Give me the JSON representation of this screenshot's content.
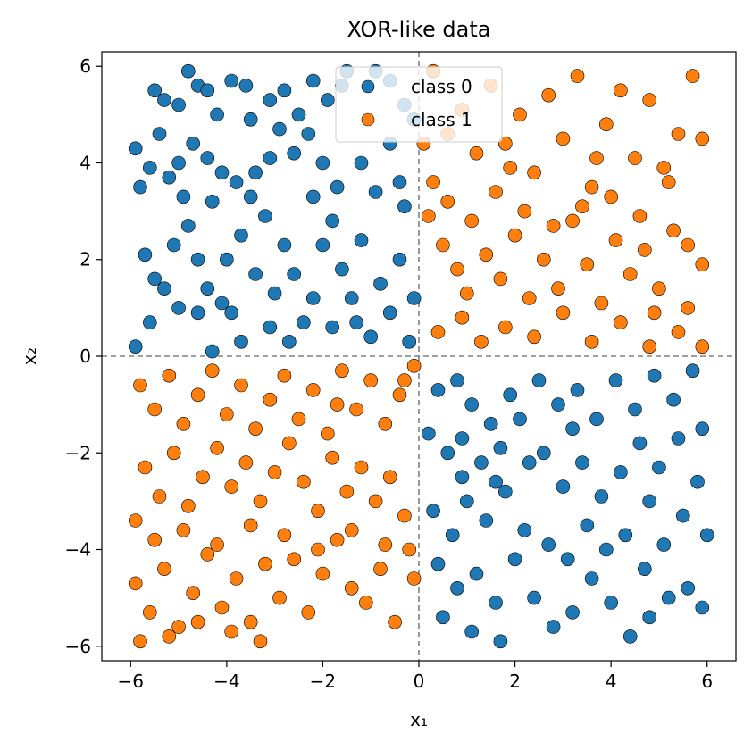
{
  "chart_data": {
    "type": "scatter",
    "title": "XOR-like data",
    "xlabel": "x₁",
    "ylabel": "x₂",
    "xlim": [
      -6.6,
      6.6
    ],
    "ylim": [
      -6.3,
      6.3
    ],
    "xticks": [
      -6,
      -4,
      -2,
      0,
      2,
      4,
      6
    ],
    "yticks": [
      -6,
      -4,
      -2,
      0,
      2,
      4,
      6
    ],
    "xtick_labels": [
      "−6",
      "−4",
      "−2",
      "0",
      "2",
      "4",
      "6"
    ],
    "ytick_labels": [
      "−6",
      "−4",
      "−2",
      "0",
      "2",
      "4",
      "6"
    ],
    "reference_lines": [
      {
        "axis": "x",
        "value": 0,
        "style": "dashed",
        "color": "#808080"
      },
      {
        "axis": "y",
        "value": 0,
        "style": "dashed",
        "color": "#808080"
      }
    ],
    "grid": false,
    "legend_position": "top-center",
    "series": [
      {
        "name": "class 0",
        "color": "#1f77b4",
        "points": [
          [
            -5.9,
            4.3
          ],
          [
            -5.8,
            3.5
          ],
          [
            -5.5,
            5.5
          ],
          [
            -5.3,
            5.3
          ],
          [
            -5.0,
            5.2
          ],
          [
            -4.8,
            5.9
          ],
          [
            -4.6,
            5.6
          ],
          [
            -4.4,
            5.5
          ],
          [
            -4.2,
            5.0
          ],
          [
            -3.9,
            5.7
          ],
          [
            -3.6,
            5.6
          ],
          [
            -3.5,
            4.9
          ],
          [
            -5.4,
            4.6
          ],
          [
            -5.0,
            4.0
          ],
          [
            -4.7,
            4.4
          ],
          [
            -4.4,
            4.1
          ],
          [
            -4.1,
            3.8
          ],
          [
            -3.8,
            3.6
          ],
          [
            -3.5,
            3.3
          ],
          [
            -5.6,
            3.9
          ],
          [
            -5.2,
            3.7
          ],
          [
            -4.9,
            3.3
          ],
          [
            -4.3,
            3.2
          ],
          [
            -3.1,
            5.3
          ],
          [
            -2.8,
            5.5
          ],
          [
            -2.5,
            5.0
          ],
          [
            -2.2,
            5.7
          ],
          [
            -1.9,
            5.3
          ],
          [
            -1.6,
            5.6
          ],
          [
            -2.9,
            4.7
          ],
          [
            -2.6,
            4.2
          ],
          [
            -2.3,
            4.6
          ],
          [
            -2.0,
            4.0
          ],
          [
            -1.7,
            3.5
          ],
          [
            -3.1,
            4.1
          ],
          [
            -3.4,
            3.8
          ],
          [
            -2.2,
            3.3
          ],
          [
            -1.5,
            5.9
          ],
          [
            -0.9,
            5.9
          ],
          [
            -0.6,
            5.7
          ],
          [
            -0.3,
            5.2
          ],
          [
            -0.1,
            4.9
          ],
          [
            -1.2,
            4.0
          ],
          [
            -0.6,
            4.4
          ],
          [
            -0.4,
            3.6
          ],
          [
            -0.9,
            3.4
          ],
          [
            -5.9,
            0.2
          ],
          [
            -5.6,
            0.7
          ],
          [
            -5.5,
            1.6
          ],
          [
            -5.3,
            1.4
          ],
          [
            -5.1,
            2.3
          ],
          [
            -4.8,
            2.7
          ],
          [
            -4.6,
            2.0
          ],
          [
            -4.4,
            1.4
          ],
          [
            -4.1,
            1.1
          ],
          [
            -3.9,
            0.9
          ],
          [
            -3.7,
            0.3
          ],
          [
            -4.3,
            0.1
          ],
          [
            -4.0,
            2.0
          ],
          [
            -3.7,
            2.5
          ],
          [
            -3.4,
            1.7
          ],
          [
            -3.2,
            2.9
          ],
          [
            -3.0,
            1.3
          ],
          [
            -2.8,
            2.3
          ],
          [
            -2.6,
            1.7
          ],
          [
            -2.4,
            0.7
          ],
          [
            -2.2,
            1.2
          ],
          [
            -2.0,
            2.3
          ],
          [
            -1.8,
            0.6
          ],
          [
            -1.6,
            1.8
          ],
          [
            -1.4,
            1.2
          ],
          [
            -1.2,
            2.4
          ],
          [
            -1.0,
            0.4
          ],
          [
            -0.8,
            1.5
          ],
          [
            -0.6,
            0.9
          ],
          [
            -0.4,
            2.0
          ],
          [
            -0.2,
            0.3
          ],
          [
            -0.1,
            1.2
          ],
          [
            -2.7,
            0.3
          ],
          [
            -3.1,
            0.6
          ],
          [
            -5.7,
            2.1
          ],
          [
            -5.0,
            1.0
          ],
          [
            -1.8,
            2.8
          ],
          [
            -0.3,
            3.1
          ],
          [
            -1.3,
            0.7
          ],
          [
            -4.6,
            0.9
          ],
          [
            0.4,
            -0.7
          ],
          [
            0.8,
            -0.5
          ],
          [
            1.1,
            -1.0
          ],
          [
            1.5,
            -1.4
          ],
          [
            1.9,
            -0.8
          ],
          [
            0.6,
            -2.0
          ],
          [
            0.9,
            -2.5
          ],
          [
            1.3,
            -2.2
          ],
          [
            1.7,
            -1.9
          ],
          [
            2.1,
            -1.3
          ],
          [
            0.3,
            -3.2
          ],
          [
            0.7,
            -3.7
          ],
          [
            1.0,
            -3.0
          ],
          [
            1.4,
            -3.4
          ],
          [
            1.8,
            -2.8
          ],
          [
            2.2,
            -3.6
          ],
          [
            0.4,
            -4.3
          ],
          [
            0.8,
            -4.8
          ],
          [
            1.2,
            -4.5
          ],
          [
            1.6,
            -5.1
          ],
          [
            2.0,
            -4.2
          ],
          [
            0.5,
            -5.4
          ],
          [
            1.1,
            -5.7
          ],
          [
            1.7,
            -5.9
          ],
          [
            2.4,
            -5.0
          ],
          [
            2.8,
            -5.6
          ],
          [
            3.2,
            -5.3
          ],
          [
            3.6,
            -4.6
          ],
          [
            4.0,
            -5.1
          ],
          [
            4.4,
            -5.8
          ],
          [
            4.8,
            -5.4
          ],
          [
            5.2,
            -5.0
          ],
          [
            5.6,
            -4.8
          ],
          [
            5.9,
            -5.2
          ],
          [
            2.5,
            -0.5
          ],
          [
            2.9,
            -1.0
          ],
          [
            3.3,
            -0.7
          ],
          [
            3.7,
            -1.3
          ],
          [
            4.1,
            -0.5
          ],
          [
            4.5,
            -1.1
          ],
          [
            4.9,
            -0.4
          ],
          [
            5.3,
            -0.9
          ],
          [
            5.7,
            -0.3
          ],
          [
            5.9,
            -1.5
          ],
          [
            2.6,
            -2.0
          ],
          [
            3.0,
            -2.7
          ],
          [
            3.4,
            -2.2
          ],
          [
            3.8,
            -2.9
          ],
          [
            4.2,
            -2.4
          ],
          [
            4.6,
            -1.8
          ],
          [
            5.0,
            -2.3
          ],
          [
            5.4,
            -1.7
          ],
          [
            5.8,
            -2.6
          ],
          [
            2.7,
            -3.9
          ],
          [
            3.1,
            -4.2
          ],
          [
            3.5,
            -3.5
          ],
          [
            3.9,
            -4.0
          ],
          [
            4.3,
            -3.7
          ],
          [
            4.7,
            -4.4
          ],
          [
            5.1,
            -3.9
          ],
          [
            5.5,
            -3.3
          ],
          [
            6.0,
            -3.7
          ],
          [
            0.2,
            -1.6
          ],
          [
            0.9,
            -1.7
          ],
          [
            1.6,
            -2.6
          ],
          [
            2.3,
            -2.2
          ],
          [
            4.8,
            -3.0
          ],
          [
            3.2,
            -1.5
          ]
        ]
      },
      {
        "name": "class 1",
        "color": "#ff7f0e",
        "points": [
          [
            0.3,
            3.6
          ],
          [
            0.6,
            4.6
          ],
          [
            0.9,
            5.1
          ],
          [
            1.2,
            4.2
          ],
          [
            1.5,
            5.6
          ],
          [
            1.8,
            4.4
          ],
          [
            2.1,
            5.0
          ],
          [
            2.4,
            3.8
          ],
          [
            2.7,
            5.4
          ],
          [
            3.0,
            4.5
          ],
          [
            3.3,
            5.8
          ],
          [
            3.6,
            3.5
          ],
          [
            3.9,
            4.8
          ],
          [
            4.2,
            5.5
          ],
          [
            4.5,
            4.1
          ],
          [
            4.8,
            5.3
          ],
          [
            5.1,
            3.9
          ],
          [
            5.4,
            4.6
          ],
          [
            5.7,
            5.8
          ],
          [
            5.9,
            4.5
          ],
          [
            0.5,
            2.3
          ],
          [
            0.8,
            1.8
          ],
          [
            1.1,
            2.8
          ],
          [
            1.4,
            2.1
          ],
          [
            1.7,
            1.6
          ],
          [
            2.0,
            2.5
          ],
          [
            2.3,
            1.2
          ],
          [
            2.6,
            2.0
          ],
          [
            2.9,
            1.4
          ],
          [
            3.2,
            2.8
          ],
          [
            3.5,
            1.9
          ],
          [
            3.8,
            1.1
          ],
          [
            4.1,
            2.4
          ],
          [
            4.4,
            1.7
          ],
          [
            4.7,
            2.2
          ],
          [
            5.0,
            1.4
          ],
          [
            5.3,
            2.6
          ],
          [
            5.6,
            1.0
          ],
          [
            5.9,
            1.9
          ],
          [
            0.4,
            0.5
          ],
          [
            0.9,
            0.8
          ],
          [
            1.3,
            0.3
          ],
          [
            1.8,
            0.6
          ],
          [
            2.4,
            0.4
          ],
          [
            3.0,
            0.9
          ],
          [
            3.6,
            0.3
          ],
          [
            4.2,
            0.7
          ],
          [
            4.8,
            0.2
          ],
          [
            5.4,
            0.5
          ],
          [
            5.9,
            0.2
          ],
          [
            0.2,
            2.9
          ],
          [
            0.6,
            3.2
          ],
          [
            1.0,
            1.3
          ],
          [
            1.6,
            3.4
          ],
          [
            2.2,
            3.0
          ],
          [
            2.8,
            2.7
          ],
          [
            3.4,
            3.1
          ],
          [
            4.0,
            3.3
          ],
          [
            4.6,
            2.9
          ],
          [
            5.2,
            3.6
          ],
          [
            0.3,
            5.9
          ],
          [
            0.1,
            4.4
          ],
          [
            1.9,
            3.9
          ],
          [
            3.7,
            4.1
          ],
          [
            5.6,
            2.3
          ],
          [
            4.9,
            0.9
          ],
          [
            -5.8,
            -0.6
          ],
          [
            -5.5,
            -1.1
          ],
          [
            -5.2,
            -0.4
          ],
          [
            -4.9,
            -1.4
          ],
          [
            -4.6,
            -0.8
          ],
          [
            -4.3,
            -0.3
          ],
          [
            -4.0,
            -1.2
          ],
          [
            -3.7,
            -0.6
          ],
          [
            -3.4,
            -1.5
          ],
          [
            -3.1,
            -0.9
          ],
          [
            -2.8,
            -0.4
          ],
          [
            -2.5,
            -1.3
          ],
          [
            -2.2,
            -0.7
          ],
          [
            -1.9,
            -1.6
          ],
          [
            -1.6,
            -0.3
          ],
          [
            -1.3,
            -1.1
          ],
          [
            -1.0,
            -0.5
          ],
          [
            -0.7,
            -1.4
          ],
          [
            -0.4,
            -0.8
          ],
          [
            -0.1,
            -0.2
          ],
          [
            -5.7,
            -2.3
          ],
          [
            -5.4,
            -2.9
          ],
          [
            -5.1,
            -2.0
          ],
          [
            -4.8,
            -3.1
          ],
          [
            -4.5,
            -2.5
          ],
          [
            -4.2,
            -1.9
          ],
          [
            -3.9,
            -2.7
          ],
          [
            -3.6,
            -2.2
          ],
          [
            -3.3,
            -3.0
          ],
          [
            -3.0,
            -2.4
          ],
          [
            -2.7,
            -1.8
          ],
          [
            -2.4,
            -2.6
          ],
          [
            -2.1,
            -3.2
          ],
          [
            -1.8,
            -2.1
          ],
          [
            -1.5,
            -2.8
          ],
          [
            -1.2,
            -2.3
          ],
          [
            -0.9,
            -3.0
          ],
          [
            -0.6,
            -2.5
          ],
          [
            -0.3,
            -3.3
          ],
          [
            -5.9,
            -4.7
          ],
          [
            -5.6,
            -5.3
          ],
          [
            -5.3,
            -4.4
          ],
          [
            -5.0,
            -5.6
          ],
          [
            -4.7,
            -4.9
          ],
          [
            -4.4,
            -4.1
          ],
          [
            -4.1,
            -5.2
          ],
          [
            -3.8,
            -4.6
          ],
          [
            -3.5,
            -5.5
          ],
          [
            -3.2,
            -4.3
          ],
          [
            -2.9,
            -5.0
          ],
          [
            -2.6,
            -4.2
          ],
          [
            -2.3,
            -5.3
          ],
          [
            -2.0,
            -4.5
          ],
          [
            -1.7,
            -3.8
          ],
          [
            -1.4,
            -4.8
          ],
          [
            -1.1,
            -5.1
          ],
          [
            -0.8,
            -4.4
          ],
          [
            -0.5,
            -5.5
          ],
          [
            -0.2,
            -4.0
          ],
          [
            -5.9,
            -3.4
          ],
          [
            -5.5,
            -3.8
          ],
          [
            -4.9,
            -3.6
          ],
          [
            -4.2,
            -3.9
          ],
          [
            -3.5,
            -3.5
          ],
          [
            -2.8,
            -3.7
          ],
          [
            -2.1,
            -4.0
          ],
          [
            -1.4,
            -3.6
          ],
          [
            -0.7,
            -3.9
          ],
          [
            -5.8,
            -5.9
          ],
          [
            -5.2,
            -5.8
          ],
          [
            -4.6,
            -5.5
          ],
          [
            -3.9,
            -5.7
          ],
          [
            -3.3,
            -5.9
          ],
          [
            -0.1,
            -4.6
          ],
          [
            -0.3,
            -0.5
          ],
          [
            -1.7,
            -1.0
          ]
        ]
      }
    ]
  }
}
